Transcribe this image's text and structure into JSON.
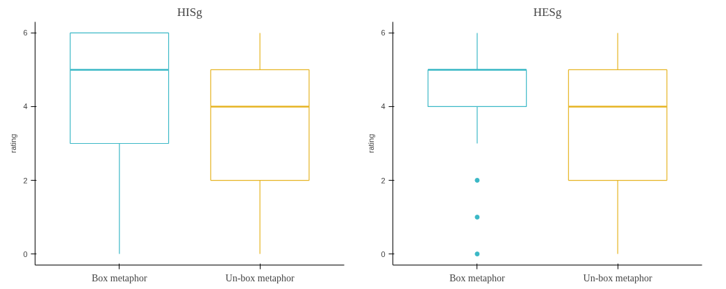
{
  "chart_data": [
    {
      "type": "box",
      "title": "HISg",
      "ylabel": "rating",
      "categories": [
        "Box metaphor",
        "Un-box metaphor"
      ],
      "colors": [
        "#3bb8c6",
        "#e6b422"
      ],
      "ylim": [
        -0.3,
        6.3
      ],
      "yticks": [
        0,
        2,
        4,
        6
      ],
      "grid": false,
      "boxes": [
        {
          "low": 0,
          "q1": 3,
          "median": 5,
          "q3": 6,
          "high": 6
        },
        {
          "low": 0,
          "q1": 2,
          "median": 4,
          "q3": 5,
          "high": 6
        }
      ]
    },
    {
      "type": "box",
      "title": "HESg",
      "ylabel": "rating",
      "categories": [
        "Box metaphor",
        "Un-box metaphor"
      ],
      "colors": [
        "#3bb8c6",
        "#e6b422"
      ],
      "ylim": [
        -0.3,
        6.3
      ],
      "yticks": [
        0,
        2,
        4,
        6
      ],
      "grid": false,
      "boxes": [
        {
          "low": 3,
          "q1": 4,
          "median": 5,
          "q3": 5,
          "high": 6,
          "outliers": [
            2,
            1,
            0
          ]
        },
        {
          "low": 0,
          "q1": 2,
          "median": 4,
          "q3": 5,
          "high": 6
        }
      ]
    }
  ]
}
